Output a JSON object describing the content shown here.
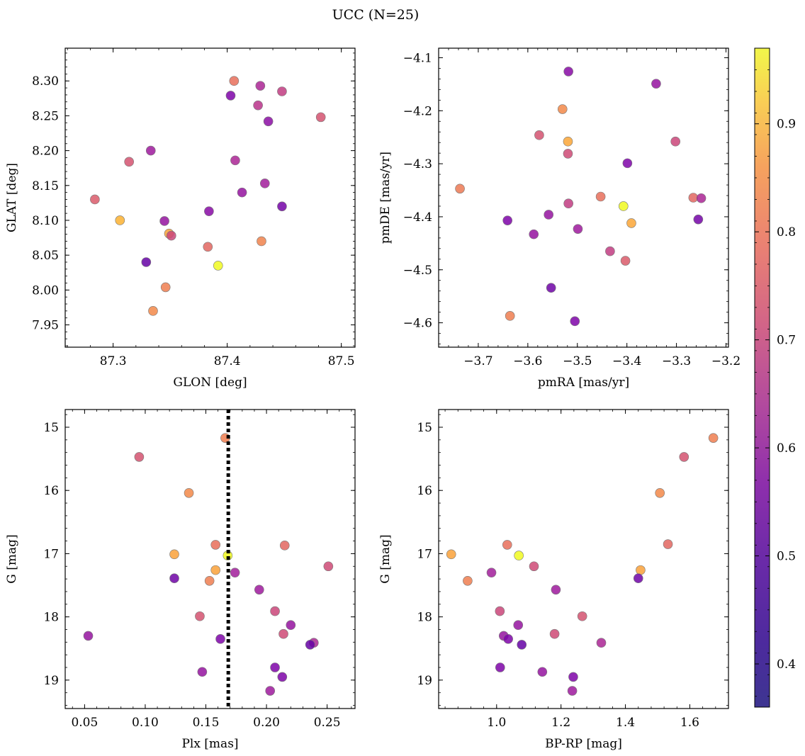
{
  "figure": {
    "title": "UCC (N=25)"
  },
  "colorbar": {
    "range": [
      0.36,
      0.97
    ],
    "ticks": [
      0.4,
      0.5,
      0.6,
      0.7,
      0.8,
      0.9
    ],
    "tick_labels": [
      "0.4",
      "0.5",
      "0.6",
      "0.7",
      "0.8",
      "0.9"
    ],
    "colormap": "plasma"
  },
  "chart_data": [
    {
      "type": "scatter",
      "xlabel": "GLON [deg]",
      "ylabel": "GLAT [deg]",
      "xlim": [
        87.258,
        87.512
      ],
      "ylim": [
        7.918,
        8.347
      ],
      "xticks": [
        87.3,
        87.4,
        87.5
      ],
      "xtick_labels": [
        "87.3",
        "87.4",
        "87.5"
      ],
      "yticks": [
        7.95,
        8.0,
        8.05,
        8.1,
        8.15,
        8.2,
        8.25,
        8.3
      ],
      "ytick_labels": [
        "7.95",
        "8.00",
        "8.05",
        "8.10",
        "8.15",
        "8.20",
        "8.25",
        "8.30"
      ],
      "points": [
        {
          "x": 87.406,
          "y": 8.3,
          "c": 0.72
        },
        {
          "x": 87.429,
          "y": 8.293,
          "c": 0.55
        },
        {
          "x": 87.448,
          "y": 8.285,
          "c": 0.6
        },
        {
          "x": 87.403,
          "y": 8.279,
          "c": 0.45
        },
        {
          "x": 87.427,
          "y": 8.265,
          "c": 0.58
        },
        {
          "x": 87.482,
          "y": 8.248,
          "c": 0.65
        },
        {
          "x": 87.436,
          "y": 8.242,
          "c": 0.48
        },
        {
          "x": 87.333,
          "y": 8.2,
          "c": 0.52
        },
        {
          "x": 87.314,
          "y": 8.184,
          "c": 0.65
        },
        {
          "x": 87.407,
          "y": 8.186,
          "c": 0.55
        },
        {
          "x": 87.433,
          "y": 8.153,
          "c": 0.53
        },
        {
          "x": 87.413,
          "y": 8.14,
          "c": 0.5
        },
        {
          "x": 87.284,
          "y": 8.13,
          "c": 0.67
        },
        {
          "x": 87.384,
          "y": 8.113,
          "c": 0.47
        },
        {
          "x": 87.448,
          "y": 8.12,
          "c": 0.43
        },
        {
          "x": 87.306,
          "y": 8.1,
          "c": 0.85
        },
        {
          "x": 87.345,
          "y": 8.099,
          "c": 0.5
        },
        {
          "x": 87.349,
          "y": 8.081,
          "c": 0.82
        },
        {
          "x": 87.351,
          "y": 8.078,
          "c": 0.62
        },
        {
          "x": 87.43,
          "y": 8.07,
          "c": 0.76
        },
        {
          "x": 87.383,
          "y": 8.062,
          "c": 0.7
        },
        {
          "x": 87.329,
          "y": 8.04,
          "c": 0.4
        },
        {
          "x": 87.392,
          "y": 8.035,
          "c": 0.97
        },
        {
          "x": 87.346,
          "y": 8.004,
          "c": 0.75
        },
        {
          "x": 87.335,
          "y": 7.97,
          "c": 0.77
        }
      ]
    },
    {
      "type": "scatter",
      "xlabel": "pmRA [mas/yr]",
      "ylabel": "pmDE [mas/yr]",
      "xlim": [
        -3.78,
        -3.195
      ],
      "ylim": [
        -4.646,
        -4.082
      ],
      "xticks": [
        -3.7,
        -3.6,
        -3.5,
        -3.4,
        -3.3,
        -3.2
      ],
      "xtick_labels": [
        "−3.7",
        "−3.6",
        "−3.5",
        "−3.4",
        "−3.3",
        "−3.2"
      ],
      "yticks": [
        -4.6,
        -4.5,
        -4.4,
        -4.3,
        -4.2,
        -4.1
      ],
      "ytick_labels": [
        "−4.6",
        "−4.5",
        "−4.4",
        "−4.3",
        "−4.2",
        "−4.1"
      ],
      "points": [
        {
          "x": -3.518,
          "y": -4.126,
          "c": 0.47
        },
        {
          "x": -3.341,
          "y": -4.149,
          "c": 0.5
        },
        {
          "x": -3.53,
          "y": -4.197,
          "c": 0.77
        },
        {
          "x": -3.577,
          "y": -4.246,
          "c": 0.65
        },
        {
          "x": -3.519,
          "y": -4.258,
          "c": 0.83
        },
        {
          "x": -3.302,
          "y": -4.258,
          "c": 0.62
        },
        {
          "x": -3.519,
          "y": -4.281,
          "c": 0.63
        },
        {
          "x": -3.399,
          "y": -4.299,
          "c": 0.45
        },
        {
          "x": -3.737,
          "y": -4.347,
          "c": 0.74
        },
        {
          "x": -3.453,
          "y": -4.362,
          "c": 0.72
        },
        {
          "x": -3.266,
          "y": -4.364,
          "c": 0.7
        },
        {
          "x": -3.25,
          "y": -4.365,
          "c": 0.55
        },
        {
          "x": -3.518,
          "y": -4.375,
          "c": 0.6
        },
        {
          "x": -3.407,
          "y": -4.38,
          "c": 0.97
        },
        {
          "x": -3.558,
          "y": -4.396,
          "c": 0.5
        },
        {
          "x": -3.256,
          "y": -4.405,
          "c": 0.43
        },
        {
          "x": -3.641,
          "y": -4.407,
          "c": 0.45
        },
        {
          "x": -3.391,
          "y": -4.412,
          "c": 0.83
        },
        {
          "x": -3.499,
          "y": -4.423,
          "c": 0.52
        },
        {
          "x": -3.588,
          "y": -4.433,
          "c": 0.5
        },
        {
          "x": -3.434,
          "y": -4.465,
          "c": 0.6
        },
        {
          "x": -3.403,
          "y": -4.483,
          "c": 0.67
        },
        {
          "x": -3.553,
          "y": -4.534,
          "c": 0.42
        },
        {
          "x": -3.636,
          "y": -4.587,
          "c": 0.75
        },
        {
          "x": -3.505,
          "y": -4.597,
          "c": 0.45
        }
      ]
    },
    {
      "type": "scatter",
      "xlabel": "Plx [mas]",
      "ylabel": "G [mag]",
      "xlim": [
        0.034,
        0.273
      ],
      "ylim": [
        19.45,
        14.72
      ],
      "vline": 0.1685,
      "xticks": [
        0.05,
        0.1,
        0.15,
        0.2,
        0.25
      ],
      "xtick_labels": [
        "0.05",
        "0.10",
        "0.15",
        "0.20",
        "0.25"
      ],
      "yticks": [
        15,
        16,
        17,
        18,
        19
      ],
      "ytick_labels": [
        "15",
        "16",
        "17",
        "18",
        "19"
      ],
      "points": [
        {
          "x": 0.166,
          "y": 15.17,
          "c": 0.75
        },
        {
          "x": 0.095,
          "y": 15.47,
          "c": 0.65
        },
        {
          "x": 0.136,
          "y": 16.04,
          "c": 0.77
        },
        {
          "x": 0.158,
          "y": 16.86,
          "c": 0.72
        },
        {
          "x": 0.215,
          "y": 16.87,
          "c": 0.7
        },
        {
          "x": 0.124,
          "y": 17.01,
          "c": 0.82
        },
        {
          "x": 0.168,
          "y": 17.03,
          "c": 0.97
        },
        {
          "x": 0.251,
          "y": 17.2,
          "c": 0.63
        },
        {
          "x": 0.158,
          "y": 17.26,
          "c": 0.82
        },
        {
          "x": 0.174,
          "y": 17.3,
          "c": 0.53
        },
        {
          "x": 0.124,
          "y": 17.39,
          "c": 0.42
        },
        {
          "x": 0.153,
          "y": 17.43,
          "c": 0.75
        },
        {
          "x": 0.194,
          "y": 17.57,
          "c": 0.52
        },
        {
          "x": 0.207,
          "y": 17.91,
          "c": 0.62
        },
        {
          "x": 0.145,
          "y": 17.99,
          "c": 0.65
        },
        {
          "x": 0.22,
          "y": 18.13,
          "c": 0.5
        },
        {
          "x": 0.214,
          "y": 18.27,
          "c": 0.63
        },
        {
          "x": 0.053,
          "y": 18.3,
          "c": 0.5
        },
        {
          "x": 0.162,
          "y": 18.35,
          "c": 0.45
        },
        {
          "x": 0.239,
          "y": 18.41,
          "c": 0.55
        },
        {
          "x": 0.236,
          "y": 18.44,
          "c": 0.4
        },
        {
          "x": 0.207,
          "y": 18.8,
          "c": 0.45
        },
        {
          "x": 0.147,
          "y": 18.87,
          "c": 0.5
        },
        {
          "x": 0.213,
          "y": 18.95,
          "c": 0.45
        },
        {
          "x": 0.203,
          "y": 19.17,
          "c": 0.52
        }
      ]
    },
    {
      "type": "scatter",
      "xlabel": "BP-RP [mag]",
      "ylabel": "G [mag]",
      "xlim": [
        0.82,
        1.72
      ],
      "ylim": [
        19.45,
        14.72
      ],
      "xticks": [
        1.0,
        1.2,
        1.4,
        1.6
      ],
      "xtick_labels": [
        "1.0",
        "1.2",
        "1.4",
        "1.6"
      ],
      "yticks": [
        15,
        16,
        17,
        18,
        19
      ],
      "ytick_labels": [
        "15",
        "16",
        "17",
        "18",
        "19"
      ],
      "points": [
        {
          "x": 1.673,
          "y": 15.17,
          "c": 0.75
        },
        {
          "x": 1.582,
          "y": 15.47,
          "c": 0.65
        },
        {
          "x": 1.507,
          "y": 16.04,
          "c": 0.77
        },
        {
          "x": 1.033,
          "y": 16.86,
          "c": 0.72
        },
        {
          "x": 1.532,
          "y": 16.85,
          "c": 0.7
        },
        {
          "x": 0.859,
          "y": 17.01,
          "c": 0.82
        },
        {
          "x": 1.069,
          "y": 17.03,
          "c": 0.97
        },
        {
          "x": 1.116,
          "y": 17.2,
          "c": 0.63
        },
        {
          "x": 1.447,
          "y": 17.26,
          "c": 0.82
        },
        {
          "x": 0.984,
          "y": 17.3,
          "c": 0.53
        },
        {
          "x": 1.44,
          "y": 17.39,
          "c": 0.42
        },
        {
          "x": 0.91,
          "y": 17.43,
          "c": 0.75
        },
        {
          "x": 1.184,
          "y": 17.57,
          "c": 0.52
        },
        {
          "x": 1.01,
          "y": 17.91,
          "c": 0.62
        },
        {
          "x": 1.266,
          "y": 17.99,
          "c": 0.65
        },
        {
          "x": 1.067,
          "y": 18.13,
          "c": 0.5
        },
        {
          "x": 1.18,
          "y": 18.27,
          "c": 0.63
        },
        {
          "x": 1.022,
          "y": 18.3,
          "c": 0.5
        },
        {
          "x": 1.036,
          "y": 18.35,
          "c": 0.45
        },
        {
          "x": 1.325,
          "y": 18.41,
          "c": 0.55
        },
        {
          "x": 1.078,
          "y": 18.44,
          "c": 0.4
        },
        {
          "x": 1.011,
          "y": 18.8,
          "c": 0.45
        },
        {
          "x": 1.142,
          "y": 18.87,
          "c": 0.5
        },
        {
          "x": 1.238,
          "y": 18.95,
          "c": 0.45
        },
        {
          "x": 1.235,
          "y": 19.17,
          "c": 0.52
        }
      ]
    }
  ]
}
